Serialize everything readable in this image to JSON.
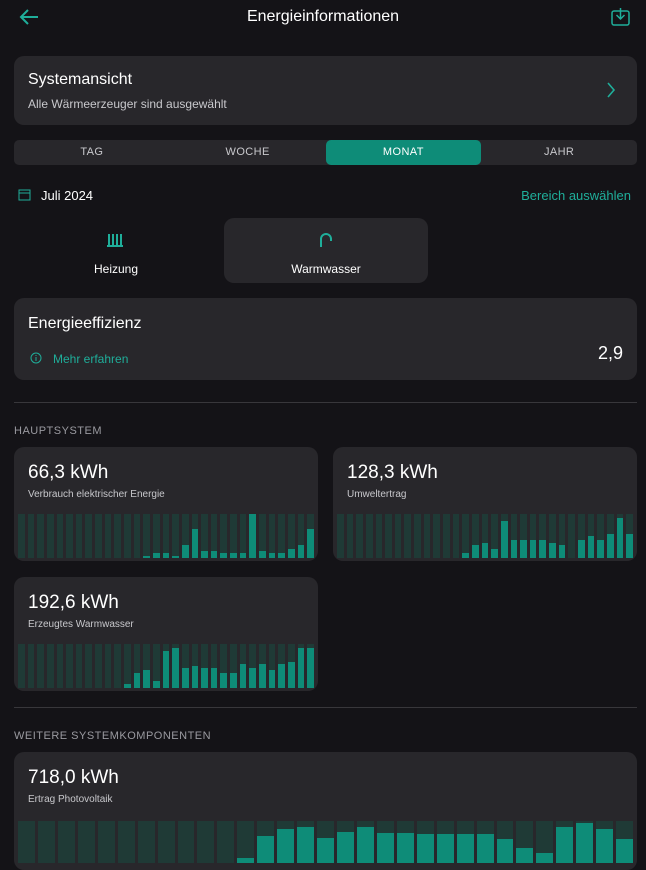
{
  "header": {
    "title": "Energieinformationen"
  },
  "system": {
    "title": "Systemansicht",
    "subtitle": "Alle Wärmeerzeuger sind ausgewählt"
  },
  "tabs": {
    "items": [
      "TAG",
      "WOCHE",
      "MONAT",
      "JAHR"
    ],
    "active": 2
  },
  "period": {
    "date": "Juli 2024",
    "link": "Bereich auswählen"
  },
  "modes": {
    "items": [
      "Heizung",
      "Warmwasser"
    ],
    "active": 1
  },
  "efficiency": {
    "title": "Energieeffizienz",
    "link": "Mehr erfahren",
    "value": "2,9"
  },
  "sections": [
    {
      "title": "HAUPTSYSTEM",
      "cards": [
        {
          "value": "66,3 kWh",
          "label": "Verbrauch elektrischer Energie",
          "bars": [
            0,
            0,
            0,
            0,
            0,
            0,
            0,
            0,
            0,
            0,
            0,
            0,
            0,
            0.05,
            0.12,
            0.12,
            0.05,
            0.3,
            0.65,
            0.15,
            0.15,
            0.12,
            0.12,
            0.12,
            1,
            0.15,
            0.12,
            0.12,
            0.2,
            0.3,
            0.65
          ]
        },
        {
          "value": "128,3 kWh",
          "label": "Umweltertrag",
          "bars": [
            0,
            0,
            0,
            0,
            0,
            0,
            0,
            0,
            0,
            0,
            0,
            0,
            0,
            0.12,
            0.3,
            0.35,
            0.2,
            0.85,
            0.4,
            0.4,
            0.4,
            0.4,
            0.35,
            0.3,
            0,
            0.4,
            0.5,
            0.4,
            0.55,
            0.9,
            0.55
          ]
        },
        {
          "value": "192,6 kWh",
          "label": "Erzeugtes Warmwasser",
          "bars": [
            0,
            0,
            0,
            0,
            0,
            0,
            0,
            0,
            0,
            0,
            0,
            0.1,
            0.35,
            0.4,
            0.15,
            0.85,
            0.9,
            0.45,
            0.5,
            0.45,
            0.45,
            0.35,
            0.35,
            0.55,
            0.45,
            0.55,
            0.4,
            0.55,
            0.6,
            0.9,
            0.9
          ]
        }
      ]
    },
    {
      "title": "WEITERE SYSTEMKOMPONENTEN",
      "cards": [
        {
          "value": "718,0 kWh",
          "label": "Ertrag Photovoltaik",
          "bars": [
            0,
            0,
            0,
            0,
            0,
            0,
            0,
            0,
            0,
            0,
            0,
            0.12,
            0.65,
            0.8,
            0.85,
            0.6,
            0.75,
            0.85,
            0.72,
            0.72,
            0.68,
            0.68,
            0.68,
            0.68,
            0.58,
            0.35,
            0.25,
            0.85,
            0.95,
            0.8,
            0.58
          ]
        }
      ]
    }
  ]
}
